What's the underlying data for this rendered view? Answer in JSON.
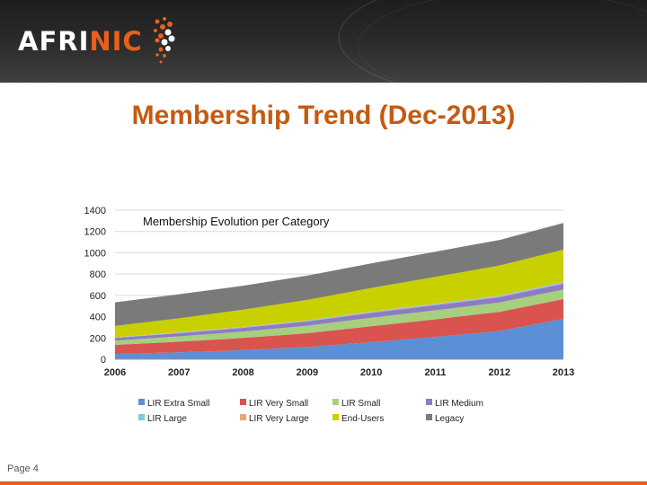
{
  "logo": {
    "text_main": "AFRI",
    "text_accent": "NIC"
  },
  "slide": {
    "title": "Membership Trend (Dec-2013)",
    "page_label": "Page 4"
  },
  "colors": {
    "accent": "#e8601c",
    "title": "#c55a11",
    "series": [
      "#5b8fd6",
      "#d9534f",
      "#a6cf7e",
      "#8f7bc2",
      "#7ec8e3",
      "#f0a868",
      "#c8d000",
      "#7a7a7a"
    ]
  },
  "chart_data": {
    "type": "area",
    "stacked": true,
    "title": "Membership Evolution per Category",
    "x": [
      2006,
      2007,
      2008,
      2009,
      2010,
      2011,
      2012,
      2013
    ],
    "x_tick_labels": [
      "2006",
      "2007",
      "2008",
      "2009",
      "2010",
      "2011",
      "2012",
      "2013"
    ],
    "ylim": [
      0,
      1400
    ],
    "y_ticks": [
      0,
      200,
      400,
      600,
      800,
      1000,
      1200,
      1400
    ],
    "y_tick_labels": [
      "0",
      "200",
      "400",
      "600",
      "800",
      "1000",
      "1200",
      "1400"
    ],
    "grid": true,
    "legend_position": "bottom",
    "series": [
      {
        "name": "LIR Extra Small",
        "values": [
          50,
          65,
          85,
          115,
          160,
          210,
          265,
          380
        ]
      },
      {
        "name": "LIR Very Small",
        "values": [
          85,
          100,
          115,
          130,
          150,
          165,
          180,
          185
        ]
      },
      {
        "name": "LIR Small",
        "values": [
          40,
          50,
          60,
          70,
          80,
          85,
          88,
          90
        ]
      },
      {
        "name": "LIR Medium",
        "values": [
          25,
          30,
          35,
          40,
          45,
          48,
          50,
          55
        ]
      },
      {
        "name": "LIR Large",
        "values": [
          5,
          6,
          7,
          8,
          9,
          10,
          11,
          12
        ]
      },
      {
        "name": "LIR Very Large",
        "values": [
          3,
          4,
          4,
          5,
          5,
          6,
          6,
          7
        ]
      },
      {
        "name": "End-Users",
        "values": [
          105,
          130,
          160,
          190,
          220,
          250,
          280,
          300
        ]
      },
      {
        "name": "Legacy",
        "values": [
          222,
          225,
          224,
          227,
          231,
          236,
          240,
          251
        ]
      }
    ]
  }
}
